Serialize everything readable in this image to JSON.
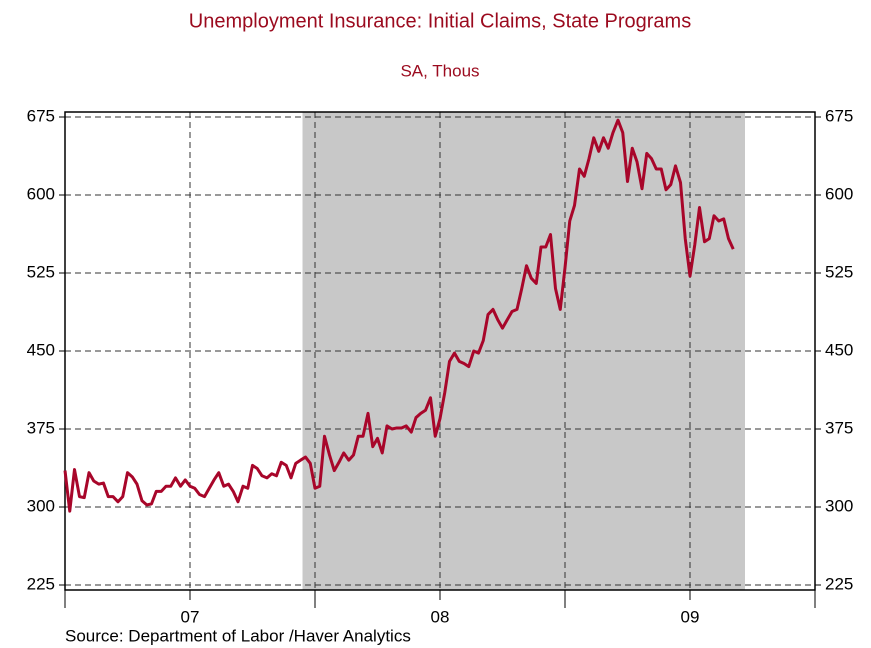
{
  "chart_data": {
    "type": "line",
    "title": "Unemployment Insurance: Initial Claims, State Programs",
    "subtitle": "SA, Thous",
    "source": "Source:  Department of Labor /Haver Analytics",
    "xlim": [
      2007,
      2010
    ],
    "xticks": [
      {
        "value": 2007.5,
        "label": "07"
      },
      {
        "value": 2008.5,
        "label": "08"
      },
      {
        "value": 2009.5,
        "label": "09"
      }
    ],
    "xgrid": [
      2007,
      2008,
      2009,
      2010
    ],
    "ylim": [
      225,
      675
    ],
    "yticks": [
      225,
      300,
      375,
      450,
      525,
      600,
      675
    ],
    "grid": true,
    "right_axis_labels": true,
    "shade": [
      2007.95,
      2009.72
    ],
    "shade_color": "#c8c8c8",
    "x": [
      2007,
      2007.019,
      2007.038,
      2007.058,
      2007.077,
      2007.096,
      2007.115,
      2007.135,
      2007.154,
      2007.173,
      2007.192,
      2007.212,
      2007.231,
      2007.25,
      2007.269,
      2007.288,
      2007.308,
      2007.327,
      2007.346,
      2007.365,
      2007.385,
      2007.404,
      2007.423,
      2007.442,
      2007.462,
      2007.481,
      2007.5,
      2007.519,
      2007.538,
      2007.558,
      2007.577,
      2007.596,
      2007.615,
      2007.635,
      2007.654,
      2007.673,
      2007.692,
      2007.712,
      2007.731,
      2007.75,
      2007.769,
      2007.788,
      2007.808,
      2007.827,
      2007.846,
      2007.865,
      2007.885,
      2007.904,
      2007.923,
      2007.942,
      2007.962,
      2007.981,
      2008,
      2008.019,
      2008.038,
      2008.058,
      2008.077,
      2008.096,
      2008.115,
      2008.135,
      2008.154,
      2008.173,
      2008.192,
      2008.212,
      2008.231,
      2008.25,
      2008.269,
      2008.288,
      2008.308,
      2008.327,
      2008.346,
      2008.365,
      2008.385,
      2008.404,
      2008.423,
      2008.442,
      2008.462,
      2008.481,
      2008.5,
      2008.519,
      2008.538,
      2008.558,
      2008.577,
      2008.596,
      2008.615,
      2008.635,
      2008.654,
      2008.673,
      2008.692,
      2008.712,
      2008.731,
      2008.75,
      2008.769,
      2008.788,
      2008.808,
      2008.827,
      2008.846,
      2008.865,
      2008.885,
      2008.904,
      2008.923,
      2008.942,
      2008.962,
      2008.981,
      2009,
      2009.019,
      2009.038,
      2009.058,
      2009.077,
      2009.096,
      2009.115,
      2009.135,
      2009.154,
      2009.173,
      2009.192,
      2009.212,
      2009.231,
      2009.25,
      2009.269,
      2009.288,
      2009.308,
      2009.327,
      2009.346,
      2009.365,
      2009.385,
      2009.404,
      2009.423,
      2009.442,
      2009.462,
      2009.481,
      2009.5,
      2009.519,
      2009.538,
      2009.558,
      2009.577,
      2009.596,
      2009.615,
      2009.635,
      2009.654,
      2009.673
    ],
    "series": [
      {
        "color": "#a8062a",
        "values": [
          335,
          296,
          336,
          310,
          309,
          333,
          325,
          322,
          323,
          310,
          310,
          305,
          310,
          333,
          329,
          322,
          306,
          302,
          303,
          315,
          315,
          320,
          320,
          328,
          320,
          326,
          320,
          318,
          312,
          310,
          318,
          326,
          333,
          320,
          322,
          315,
          305,
          320,
          318,
          340,
          337,
          330,
          328,
          332,
          330,
          343,
          340,
          328,
          342,
          345,
          348,
          342,
          318,
          320,
          368,
          350,
          335,
          343,
          352,
          345,
          350,
          368,
          368,
          390,
          358,
          366,
          352,
          378,
          375,
          376,
          376,
          378,
          372,
          386,
          390,
          393,
          405,
          368,
          385,
          410,
          440,
          448,
          440,
          438,
          435,
          450,
          448,
          460,
          485,
          490,
          480,
          472,
          480,
          488,
          490,
          510,
          532,
          520,
          515,
          550,
          550,
          562,
          510,
          490,
          530,
          575,
          590,
          625,
          618,
          635,
          655,
          642,
          655,
          645,
          660,
          672,
          660,
          613,
          645,
          632,
          606,
          640,
          635,
          625,
          625,
          605,
          610,
          628,
          612,
          558,
          522,
          552,
          588,
          555,
          558,
          580,
          575,
          577,
          558,
          548
        ]
      }
    ]
  }
}
